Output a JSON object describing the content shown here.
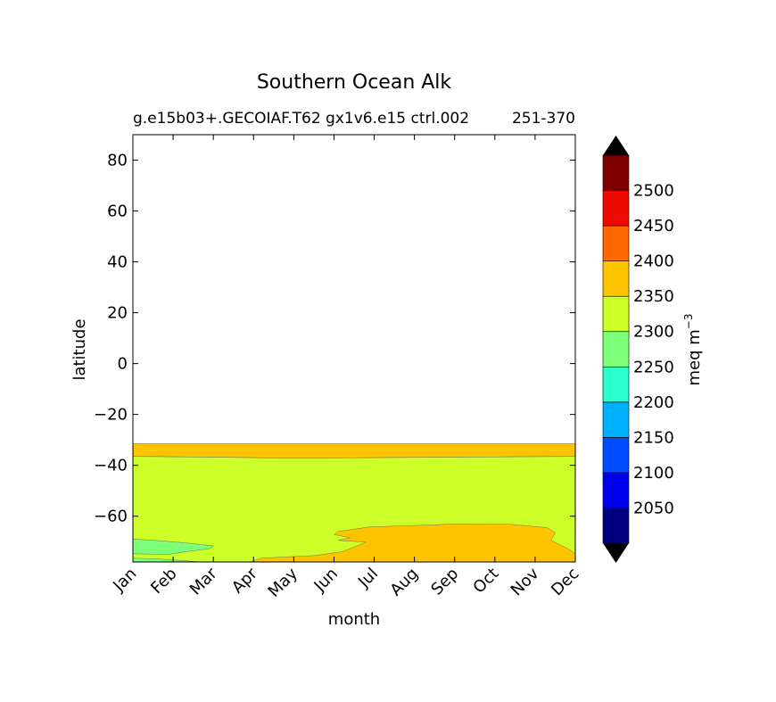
{
  "chart_data": {
    "type": "heatmap",
    "title": "Southern Ocean Alk",
    "subtitle_left": "g.e15b03+.GECOIAF.T62 gx1v6.e15 ctrl.002",
    "subtitle_right": "251-370",
    "xlabel": "month",
    "ylabel": "latitude",
    "x_categories": [
      "Jan",
      "Feb",
      "Mar",
      "Apr",
      "May",
      "Jun",
      "Jul",
      "Aug",
      "Sep",
      "Oct",
      "Nov",
      "Dec"
    ],
    "yticks": [
      80,
      60,
      40,
      20,
      0,
      -20,
      -40,
      -60
    ],
    "ytick_labels": [
      "80",
      "60",
      "40",
      "20",
      "0",
      "−20",
      "−40",
      "−60"
    ],
    "ylim": [
      -78,
      90
    ],
    "colorbar": {
      "label": "meq m",
      "label_exponent": "−3",
      "levels": [
        2000,
        2050,
        2100,
        2150,
        2200,
        2250,
        2300,
        2350,
        2400,
        2450,
        2500,
        2550
      ],
      "tick_values": [
        2050,
        2100,
        2150,
        2200,
        2250,
        2300,
        2350,
        2400,
        2450,
        2500
      ],
      "tick_labels": [
        "2050",
        "2100",
        "2150",
        "2200",
        "2250",
        "2300",
        "2350",
        "2400",
        "2450",
        "2500"
      ],
      "colors": [
        "#00007f",
        "#0000ee",
        "#004cff",
        "#00b0ff",
        "#29ffcd",
        "#7dff7a",
        "#cdff29",
        "#ffc400",
        "#ff6700",
        "#ee0a00",
        "#7f0000"
      ],
      "under_color": "#000000",
      "over_color": "#000000",
      "extend": "both"
    },
    "regions": [
      {
        "label": "2350-2400 band",
        "level_range": [
          2350,
          2400
        ],
        "lat_range": [
          -36.5,
          -31.5
        ],
        "months": "Jan-Dec"
      },
      {
        "label": "2300-2350 main",
        "level_range": [
          2300,
          2350
        ],
        "lat_range": [
          -78,
          -36.5
        ],
        "months": "Jan-Dec"
      },
      {
        "label": "2350-2400 winter patch",
        "level_range": [
          2350,
          2400
        ],
        "lat_range": [
          -78,
          -63
        ],
        "months": "Apr-Dec"
      },
      {
        "label": "2250-2300 patch",
        "level_range": [
          2250,
          2300
        ],
        "lat_range": [
          -75,
          -69
        ],
        "months": "Jan-Mar"
      }
    ],
    "grid": false,
    "legend": "colorbar-right"
  }
}
